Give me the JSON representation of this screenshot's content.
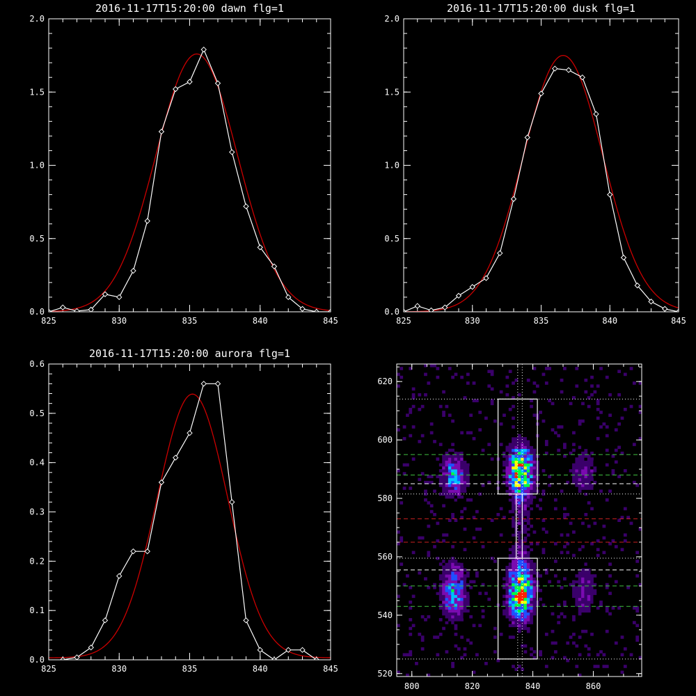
{
  "figure": {
    "background": "#000000",
    "axis_color": "#ffffff",
    "data_color": "#ffffff",
    "fit_color": "#cc0000"
  },
  "chart_data": [
    {
      "type": "line",
      "title": "2016-11-17T15:20:00 dawn flg=1",
      "xlim": [
        825,
        845
      ],
      "ylim": [
        0,
        2.0
      ],
      "xticks": [
        "825",
        "830",
        "835",
        "840",
        "845"
      ],
      "yticks": [
        "0.0",
        "0.5",
        "1.0",
        "1.5",
        "2.0"
      ],
      "series": [
        {
          "style": "data-diamonds",
          "x": [
            825,
            826,
            827,
            828,
            829,
            830,
            831,
            832,
            833,
            834,
            835,
            836,
            837,
            838,
            839,
            840,
            841,
            842,
            843,
            844,
            845
          ],
          "y": [
            0.0,
            0.03,
            0.005,
            0.015,
            0.12,
            0.1,
            0.28,
            0.62,
            1.23,
            1.52,
            1.57,
            1.79,
            1.56,
            1.09,
            0.72,
            0.44,
            0.31,
            0.1,
            0.02,
            0.0,
            0.0
          ]
        },
        {
          "style": "gaussian-fit",
          "amplitude": 1.76,
          "center": 835.5,
          "sigma": 2.9
        }
      ]
    },
    {
      "type": "line",
      "title": "2016-11-17T15:20:00 dusk flg=1",
      "xlim": [
        825,
        845
      ],
      "ylim": [
        0,
        2.0
      ],
      "xticks": [
        "825",
        "830",
        "835",
        "840",
        "845"
      ],
      "yticks": [
        "0.0",
        "0.5",
        "1.0",
        "1.5",
        "2.0"
      ],
      "series": [
        {
          "style": "data-diamonds",
          "x": [
            825,
            826,
            827,
            828,
            829,
            830,
            831,
            832,
            833,
            834,
            835,
            836,
            837,
            838,
            839,
            840,
            841,
            842,
            843,
            844,
            845
          ],
          "y": [
            0.0,
            0.04,
            0.01,
            0.03,
            0.11,
            0.17,
            0.23,
            0.4,
            0.77,
            1.19,
            1.49,
            1.66,
            1.65,
            1.6,
            1.35,
            0.8,
            0.37,
            0.18,
            0.07,
            0.02,
            0.0
          ]
        },
        {
          "style": "gaussian-fit",
          "amplitude": 1.75,
          "center": 836.6,
          "sigma": 2.9
        }
      ]
    },
    {
      "type": "line",
      "title": "2016-11-17T15:20:00 aurora flg=1",
      "xlim": [
        825,
        845
      ],
      "ylim": [
        0,
        0.6
      ],
      "xticks": [
        "825",
        "830",
        "835",
        "840",
        "845"
      ],
      "yticks": [
        "0.0",
        "0.1",
        "0.2",
        "0.3",
        "0.4",
        "0.5",
        "0.6"
      ],
      "series": [
        {
          "style": "data-diamonds",
          "x": [
            826,
            827,
            828,
            829,
            830,
            831,
            832,
            833,
            834,
            835,
            836,
            837,
            838,
            839,
            840,
            841,
            842,
            843,
            844
          ],
          "y": [
            0.0,
            0.005,
            0.025,
            0.08,
            0.17,
            0.22,
            0.22,
            0.36,
            0.41,
            0.46,
            0.56,
            0.56,
            0.32,
            0.08,
            0.02,
            0.0,
            0.02,
            0.02,
            0.0
          ]
        },
        {
          "style": "gaussian-fit",
          "amplitude": 0.535,
          "center": 835.2,
          "sigma": 2.5,
          "offset": 0.004
        }
      ]
    },
    {
      "type": "heatmap",
      "title": "",
      "xlim": [
        795,
        876
      ],
      "ylim": [
        519,
        626
      ],
      "xticks": [
        "800",
        "820",
        "840",
        "860"
      ],
      "yticks": [
        "520",
        "540",
        "560",
        "580",
        "600",
        "620"
      ],
      "colormap": [
        "#000000",
        "#3a006a",
        "#7a0bb0",
        "#2050ff",
        "#00c0ff",
        "#00ff40",
        "#ffff00",
        "#ff2000"
      ],
      "blobs": [
        {
          "x": 836,
          "y": 589,
          "w": 3.0,
          "h": 6.5,
          "peak": 1.0
        },
        {
          "x": 836,
          "y": 548,
          "w": 3.0,
          "h": 7.0,
          "peak": 1.0
        },
        {
          "x": 814,
          "y": 588,
          "w": 3.0,
          "h": 5.0,
          "peak": 0.62
        },
        {
          "x": 814,
          "y": 548,
          "w": 3.0,
          "h": 7.0,
          "peak": 0.6
        },
        {
          "x": 857,
          "y": 589,
          "w": 3.0,
          "h": 6.0,
          "peak": 0.32
        },
        {
          "x": 857,
          "y": 548,
          "w": 3.0,
          "h": 6.5,
          "peak": 0.32
        },
        {
          "x": 836,
          "y": 569,
          "w": 2.5,
          "h": 8.0,
          "peak": 0.22
        }
      ],
      "boxes": [
        {
          "x0": 828.5,
          "x1": 841.5,
          "y0": 581.5,
          "y1": 614
        },
        {
          "x0": 828.5,
          "x1": 841.5,
          "y0": 525,
          "y1": 559.5
        },
        {
          "x0": 834.5,
          "x1": 836.5,
          "y0": 559.5,
          "y1": 581.5
        }
      ],
      "hlines": [
        {
          "y": 614,
          "color": "#ffffff",
          "dash": "dotted"
        },
        {
          "y": 595,
          "color": "#40c040",
          "dash": "dashed"
        },
        {
          "y": 588,
          "color": "#40c040",
          "dash": "dashed"
        },
        {
          "y": 585,
          "color": "#ffffff",
          "dash": "dashed"
        },
        {
          "y": 581.5,
          "color": "#ffffff",
          "dash": "dotted"
        },
        {
          "y": 573,
          "color": "#cc2020",
          "dash": "dashed"
        },
        {
          "y": 565,
          "color": "#cc2020",
          "dash": "dashed"
        },
        {
          "y": 559.5,
          "color": "#ffffff",
          "dash": "dotted"
        },
        {
          "y": 555.5,
          "color": "#ffffff",
          "dash": "dashed"
        },
        {
          "y": 550,
          "color": "#40c040",
          "dash": "dashed"
        },
        {
          "y": 543,
          "color": "#40c040",
          "dash": "dashed"
        },
        {
          "y": 525,
          "color": "#ffffff",
          "dash": "dotted"
        }
      ],
      "vlines": [
        {
          "x": 835,
          "color": "#ffffff",
          "dash": "dotted"
        },
        {
          "x": 836.5,
          "color": "#ffffff",
          "dash": "dotted"
        }
      ]
    }
  ]
}
